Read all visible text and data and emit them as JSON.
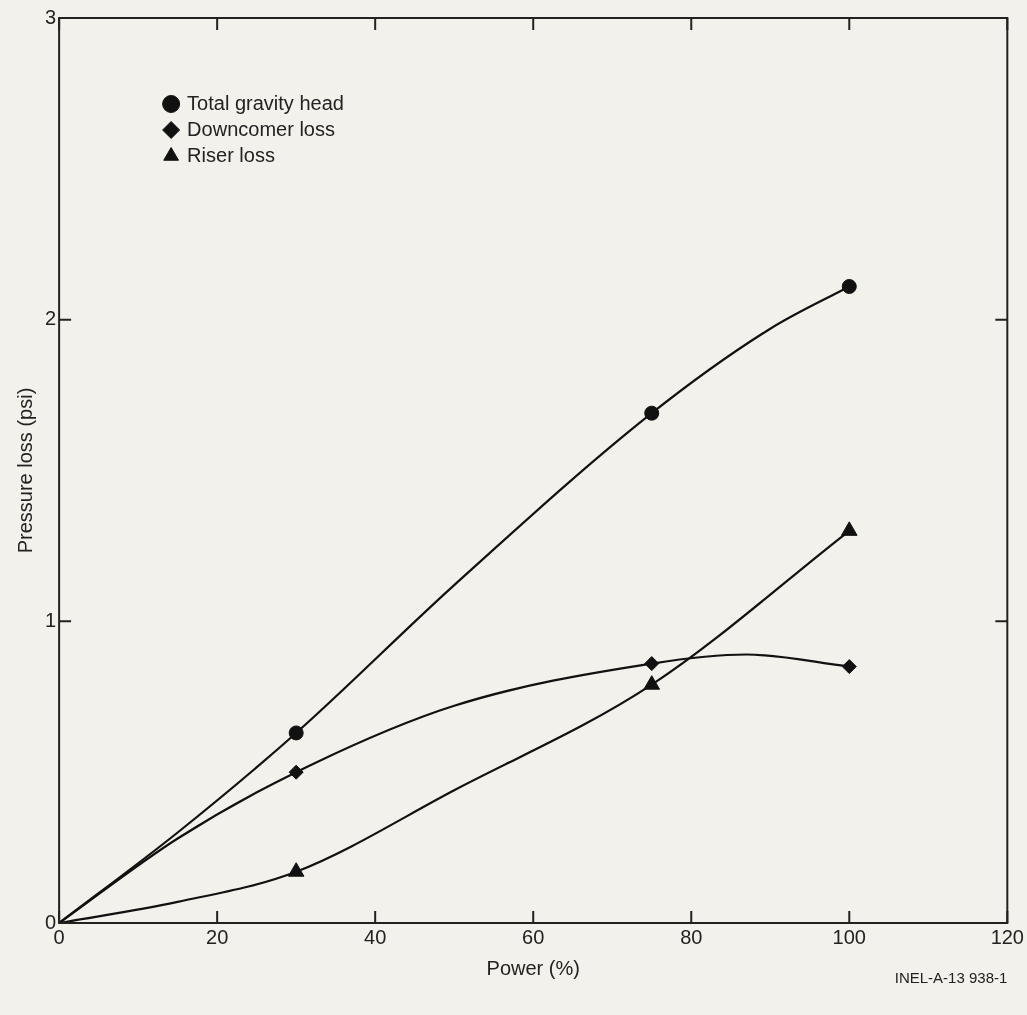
{
  "chart_data": {
    "type": "scatter",
    "xlabel": "Power (%)",
    "ylabel": "Pressure loss (psi)",
    "xlim": [
      0,
      120
    ],
    "xticks": [
      0,
      20,
      40,
      60,
      80,
      100,
      120
    ],
    "ylim": [
      0,
      3
    ],
    "yticks": [
      0,
      1,
      2,
      3
    ],
    "grid": false,
    "legend": "top left",
    "series": [
      {
        "name": "Total gravity head",
        "color": "#111111",
        "marker": "circle",
        "x": [
          30,
          75,
          100
        ],
        "values": [
          0.63,
          1.69,
          2.11
        ]
      },
      {
        "name": "Downcomer loss",
        "color": "#111111",
        "marker": "diamond",
        "x": [
          30,
          75,
          100
        ],
        "values": [
          0.5,
          0.86,
          0.85
        ]
      },
      {
        "name": "Riser loss",
        "color": "#111111",
        "marker": "triangle",
        "x": [
          30,
          75,
          100
        ],
        "values": [
          0.17,
          0.79,
          1.3
        ]
      },
      {
        "type": "line",
        "color": "#111111",
        "marker": "none",
        "x": [
          0,
          15,
          30,
          50,
          75,
          90,
          100
        ],
        "values": [
          0,
          0.3,
          0.63,
          1.12,
          1.69,
          1.97,
          2.11
        ]
      },
      {
        "type": "line",
        "color": "#111111",
        "marker": "none",
        "x": [
          0,
          15,
          30,
          50,
          75,
          87,
          100
        ],
        "values": [
          0,
          0.28,
          0.5,
          0.72,
          0.86,
          0.89,
          0.85
        ]
      },
      {
        "type": "line",
        "color": "#111111",
        "marker": "none",
        "x": [
          0,
          15,
          30,
          50,
          75,
          100
        ],
        "values": [
          0,
          0.07,
          0.17,
          0.44,
          0.79,
          1.3
        ]
      }
    ],
    "annotations": [
      "INEL-A-13 938-1"
    ]
  }
}
